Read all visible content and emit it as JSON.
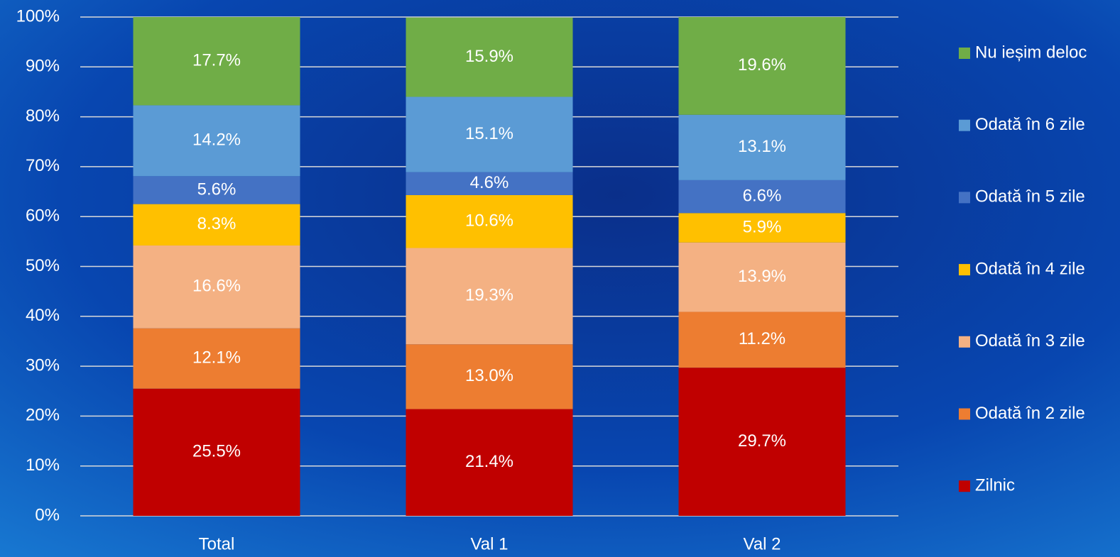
{
  "chart_data": {
    "type": "bar",
    "stacked": true,
    "categories": [
      "Total",
      "Val 1",
      "Val 2"
    ],
    "series": [
      {
        "name": "Zilnic",
        "color": "#c00000",
        "values": [
          25.5,
          21.4,
          29.7
        ],
        "value_labels": [
          "25.5%",
          "21.4%",
          "29.7%"
        ]
      },
      {
        "name": "Odată în 2 zile",
        "color": "#ed7d31",
        "values": [
          12.1,
          13,
          11.2
        ],
        "value_labels": [
          "12.1%",
          "13.0%",
          "11.2%"
        ]
      },
      {
        "name": "Odată în 3 zile",
        "color": "#f4b183",
        "values": [
          16.6,
          19.3,
          13.9
        ],
        "value_labels": [
          "16.6%",
          "19.3%",
          "13.9%"
        ]
      },
      {
        "name": "Odată în 4 zile",
        "color": "#ffc000",
        "values": [
          8.3,
          10.6,
          5.9
        ],
        "value_labels": [
          "8.3%",
          "10.6%",
          "5.9%"
        ]
      },
      {
        "name": "Odată în 5 zile",
        "color": "#4472c4",
        "values": [
          5.6,
          4.6,
          6.6
        ],
        "value_labels": [
          "5.6%",
          "4.6%",
          "6.6%"
        ]
      },
      {
        "name": "Odată în 6 zile",
        "color": "#5b9bd5",
        "values": [
          14.2,
          15.1,
          13.1
        ],
        "value_labels": [
          "14.2%",
          "15.1%",
          "13.1%"
        ]
      },
      {
        "name": "Nu ieșim deloc",
        "color": "#70ad47",
        "values": [
          17.7,
          15.9,
          19.6
        ],
        "value_labels": [
          "17.7%",
          "15.9%",
          "19.6%"
        ]
      }
    ],
    "ylim": [
      0,
      100
    ],
    "yticks": [
      {
        "value": 0,
        "label": "0%"
      },
      {
        "value": 10,
        "label": "10%"
      },
      {
        "value": 20,
        "label": "20%"
      },
      {
        "value": 30,
        "label": "30%"
      },
      {
        "value": 40,
        "label": "40%"
      },
      {
        "value": 50,
        "label": "50%"
      },
      {
        "value": 60,
        "label": "60%"
      },
      {
        "value": 70,
        "label": "70%"
      },
      {
        "value": 80,
        "label": "80%"
      },
      {
        "value": 90,
        "label": "90%"
      },
      {
        "value": 100,
        "label": "100%"
      }
    ],
    "grid": true,
    "legend": "right"
  }
}
